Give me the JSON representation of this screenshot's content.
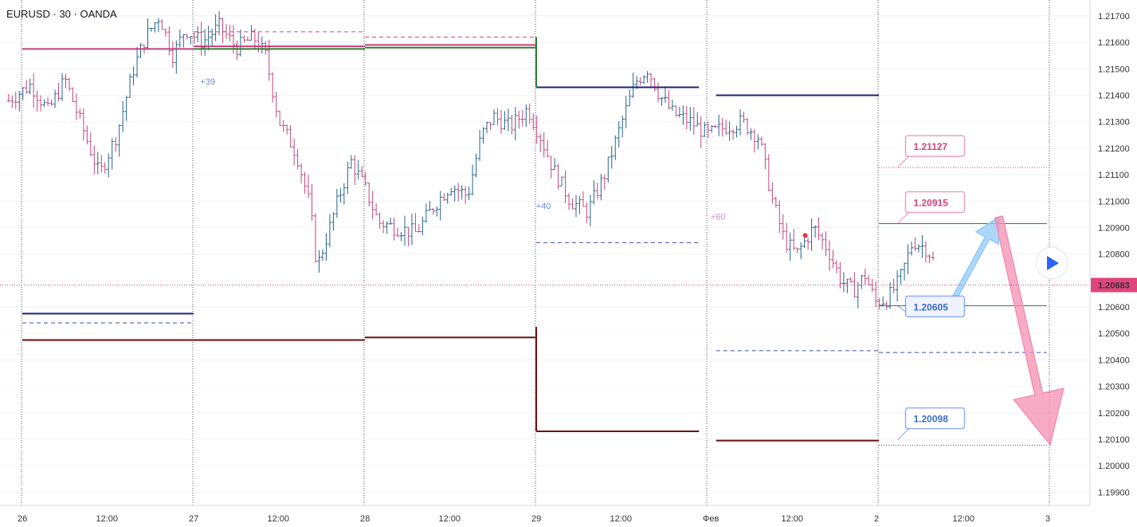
{
  "chart_data": {
    "type": "candlestick",
    "title": "EURUSD · 30 · OANDA",
    "ylim": [
      1.1985,
      1.2176
    ],
    "y_ticks": [
      "1.21700",
      "1.21600",
      "1.21500",
      "1.21400",
      "1.21300",
      "1.21200",
      "1.21100",
      "1.21000",
      "1.20900",
      "1.20800",
      "1.20700",
      "1.20600",
      "1.20500",
      "1.20400",
      "1.20300",
      "1.20200",
      "1.20100",
      "1.20000",
      "1.19900"
    ],
    "x_range": [
      -0.08,
      5.62
    ],
    "x_ticks": [
      {
        "pos": 0.0,
        "label": "26"
      },
      {
        "pos": 0.5,
        "label": "12:00"
      },
      {
        "pos": 1.0,
        "label": "27"
      },
      {
        "pos": 1.5,
        "label": "12:00"
      },
      {
        "pos": 2.0,
        "label": "28"
      },
      {
        "pos": 2.5,
        "label": "12:00"
      },
      {
        "pos": 3.0,
        "label": "29"
      },
      {
        "pos": 3.5,
        "label": "12:00"
      },
      {
        "pos": 4.0,
        "label": "Фев"
      },
      {
        "pos": 4.5,
        "label": "12:00"
      },
      {
        "pos": 5.0,
        "label": "2"
      },
      {
        "pos": 5.5,
        "label": "12:00"
      },
      {
        "pos": 6.0,
        "label": "3"
      }
    ],
    "day_separators": [
      0.0,
      1.0,
      2.0,
      3.0,
      4.0,
      5.0,
      6.0
    ],
    "current_price": {
      "value": 1.20683,
      "label": "1.20683",
      "color": "#e0457b"
    },
    "price_path": [
      [
        -0.08,
        1.2138
      ],
      [
        0.05,
        1.2144
      ],
      [
        0.15,
        1.2134
      ],
      [
        0.25,
        1.2146
      ],
      [
        0.35,
        1.2128
      ],
      [
        0.45,
        1.211
      ],
      [
        0.55,
        1.2125
      ],
      [
        0.65,
        1.215
      ],
      [
        0.72,
        1.2162
      ],
      [
        0.8,
        1.217
      ],
      [
        0.88,
        1.2155
      ],
      [
        0.95,
        1.2165
      ],
      [
        1.05,
        1.216
      ],
      [
        1.15,
        1.2166
      ],
      [
        1.25,
        1.2158
      ],
      [
        1.35,
        1.2162
      ],
      [
        1.42,
        1.2155
      ],
      [
        1.5,
        1.213
      ],
      [
        1.6,
        1.2118
      ],
      [
        1.68,
        1.2098
      ],
      [
        1.72,
        1.2075
      ],
      [
        1.78,
        1.2087
      ],
      [
        1.85,
        1.2102
      ],
      [
        1.92,
        1.2115
      ],
      [
        2.0,
        1.2105
      ],
      [
        2.08,
        1.2092
      ],
      [
        2.18,
        1.209
      ],
      [
        2.3,
        1.2088
      ],
      [
        2.4,
        1.2098
      ],
      [
        2.5,
        1.2106
      ],
      [
        2.6,
        1.2102
      ],
      [
        2.68,
        1.2125
      ],
      [
        2.75,
        1.2132
      ],
      [
        2.85,
        1.2128
      ],
      [
        2.95,
        1.2135
      ],
      [
        3.02,
        1.2125
      ],
      [
        3.1,
        1.2112
      ],
      [
        3.2,
        1.21
      ],
      [
        3.3,
        1.2096
      ],
      [
        3.4,
        1.211
      ],
      [
        3.5,
        1.213
      ],
      [
        3.58,
        1.2145
      ],
      [
        3.65,
        1.215
      ],
      [
        3.72,
        1.214
      ],
      [
        3.8,
        1.2133
      ],
      [
        3.9,
        1.213
      ],
      [
        4.0,
        1.2125
      ],
      [
        4.1,
        1.2128
      ],
      [
        4.2,
        1.213
      ],
      [
        4.3,
        1.2124
      ],
      [
        4.38,
        1.21
      ],
      [
        4.45,
        1.2085
      ],
      [
        4.52,
        1.208
      ],
      [
        4.62,
        1.209
      ],
      [
        4.7,
        1.2082
      ],
      [
        4.78,
        1.207
      ],
      [
        4.85,
        1.2066
      ],
      [
        4.92,
        1.2072
      ],
      [
        4.98,
        1.2062
      ],
      [
        5.05,
        1.2063
      ],
      [
        5.12,
        1.207
      ],
      [
        5.2,
        1.2085
      ],
      [
        5.28,
        1.2082
      ],
      [
        5.33,
        1.2076
      ]
    ],
    "horizontal_lines": [
      {
        "x0": 0.0,
        "x1": 1.0,
        "y": 1.21575,
        "color": "#c0407a",
        "width": 2,
        "dash": false
      },
      {
        "x0": 1.0,
        "x1": 2.0,
        "y": 1.21585,
        "color": "#c0407a",
        "width": 2,
        "dash": false
      },
      {
        "x0": 1.0,
        "x1": 2.0,
        "y": 1.21575,
        "color": "#2e7d32",
        "width": 2,
        "dash": false
      },
      {
        "x0": 1.0,
        "x1": 2.0,
        "y": 1.2164,
        "color": "#e0457b",
        "width": 1,
        "dash": true
      },
      {
        "x0": 2.0,
        "x1": 3.0,
        "y": 1.2159,
        "color": "#c0407a",
        "width": 2,
        "dash": false
      },
      {
        "x0": 2.0,
        "x1": 3.0,
        "y": 1.2158,
        "color": "#2e7d32",
        "width": 2,
        "dash": false
      },
      {
        "x0": 2.0,
        "x1": 3.0,
        "y": 1.2162,
        "color": "#e0457b",
        "width": 1,
        "dash": true
      },
      {
        "x0": 3.0,
        "x1": 3.95,
        "y": 1.2143,
        "color": "#1a237e",
        "width": 2,
        "dash": false
      },
      {
        "x0": 3.0,
        "x1": 3.95,
        "y": 1.20843,
        "color": "#3f51b5",
        "width": 1,
        "dash": true
      },
      {
        "x0": 3.0,
        "x1": 3.95,
        "y": 1.2013,
        "color": "#6d0f0f",
        "width": 2,
        "dash": false
      },
      {
        "x0": 4.05,
        "x1": 5.0,
        "y": 1.214,
        "color": "#1a237e",
        "width": 2,
        "dash": false
      },
      {
        "x0": 4.05,
        "x1": 5.0,
        "y": 1.20435,
        "color": "#3f51b5",
        "width": 1,
        "dash": true
      },
      {
        "x0": 5.0,
        "x1": 5.98,
        "y": 1.20428,
        "color": "#3f51b5",
        "width": 1,
        "dash": true
      },
      {
        "x0": 4.05,
        "x1": 5.0,
        "y": 1.20095,
        "color": "#6d0f0f",
        "width": 2,
        "dash": false
      },
      {
        "x0": 0.0,
        "x1": 1.0,
        "y": 1.20575,
        "color": "#1a237e",
        "width": 2,
        "dash": false
      },
      {
        "x0": 0.0,
        "x1": 1.0,
        "y": 1.2054,
        "color": "#3f51b5",
        "width": 1,
        "dash": true
      },
      {
        "x0": 0.0,
        "x1": 2.0,
        "y": 1.20475,
        "color": "#6d0f0f",
        "width": 2,
        "dash": false
      },
      {
        "x0": 2.0,
        "x1": 3.0,
        "y": 1.20485,
        "color": "#6d0f0f",
        "width": 2,
        "dash": false
      },
      {
        "x0": 5.0,
        "x1": 5.98,
        "y": 1.20915,
        "color": "#2e7d32",
        "width": 1,
        "dash": false
      },
      {
        "x0": 5.0,
        "x1": 5.98,
        "y": 1.20605,
        "color": "#2e7d32",
        "width": 1,
        "dash": false
      },
      {
        "x0": 5.0,
        "x1": 5.98,
        "y": 1.21127,
        "color": "#e0457b",
        "width": 1,
        "dash": "dot"
      },
      {
        "x0": 5.0,
        "x1": 5.98,
        "y": 1.20078,
        "color": "#555555",
        "width": 1,
        "dash": "dot"
      }
    ],
    "annotations": [
      {
        "label": "1.21127",
        "x": 5.1,
        "y": 1.21127,
        "color": "#e0457b"
      },
      {
        "label": "1.20915",
        "x": 5.1,
        "y": 1.20915,
        "color": "#e0457b"
      },
      {
        "label": "1.20605",
        "x": 5.1,
        "y": 1.20605,
        "color": "#2962ff"
      },
      {
        "label": "1.20098",
        "x": 5.1,
        "y": 1.20098,
        "color": "#2962ff"
      }
    ],
    "bar_notes": [
      {
        "label": "+39",
        "x": 1.02,
        "y": 1.2144,
        "color": "#6a8ed6"
      },
      {
        "label": "+40",
        "x": 2.98,
        "y": 1.2097,
        "color": "#6a8ed6"
      },
      {
        "label": "+60",
        "x": 4.0,
        "y": 1.2093,
        "color": "#d48ac8"
      }
    ],
    "arrows": [
      {
        "kind": "up",
        "from": [
          5.43,
          1.2062
        ],
        "to": [
          5.7,
          1.2094
        ],
        "color": "#90caf9"
      },
      {
        "kind": "down",
        "from": [
          5.7,
          1.2094
        ],
        "to": [
          6.0,
          1.2008
        ],
        "color": "#f48fb1"
      }
    ]
  }
}
